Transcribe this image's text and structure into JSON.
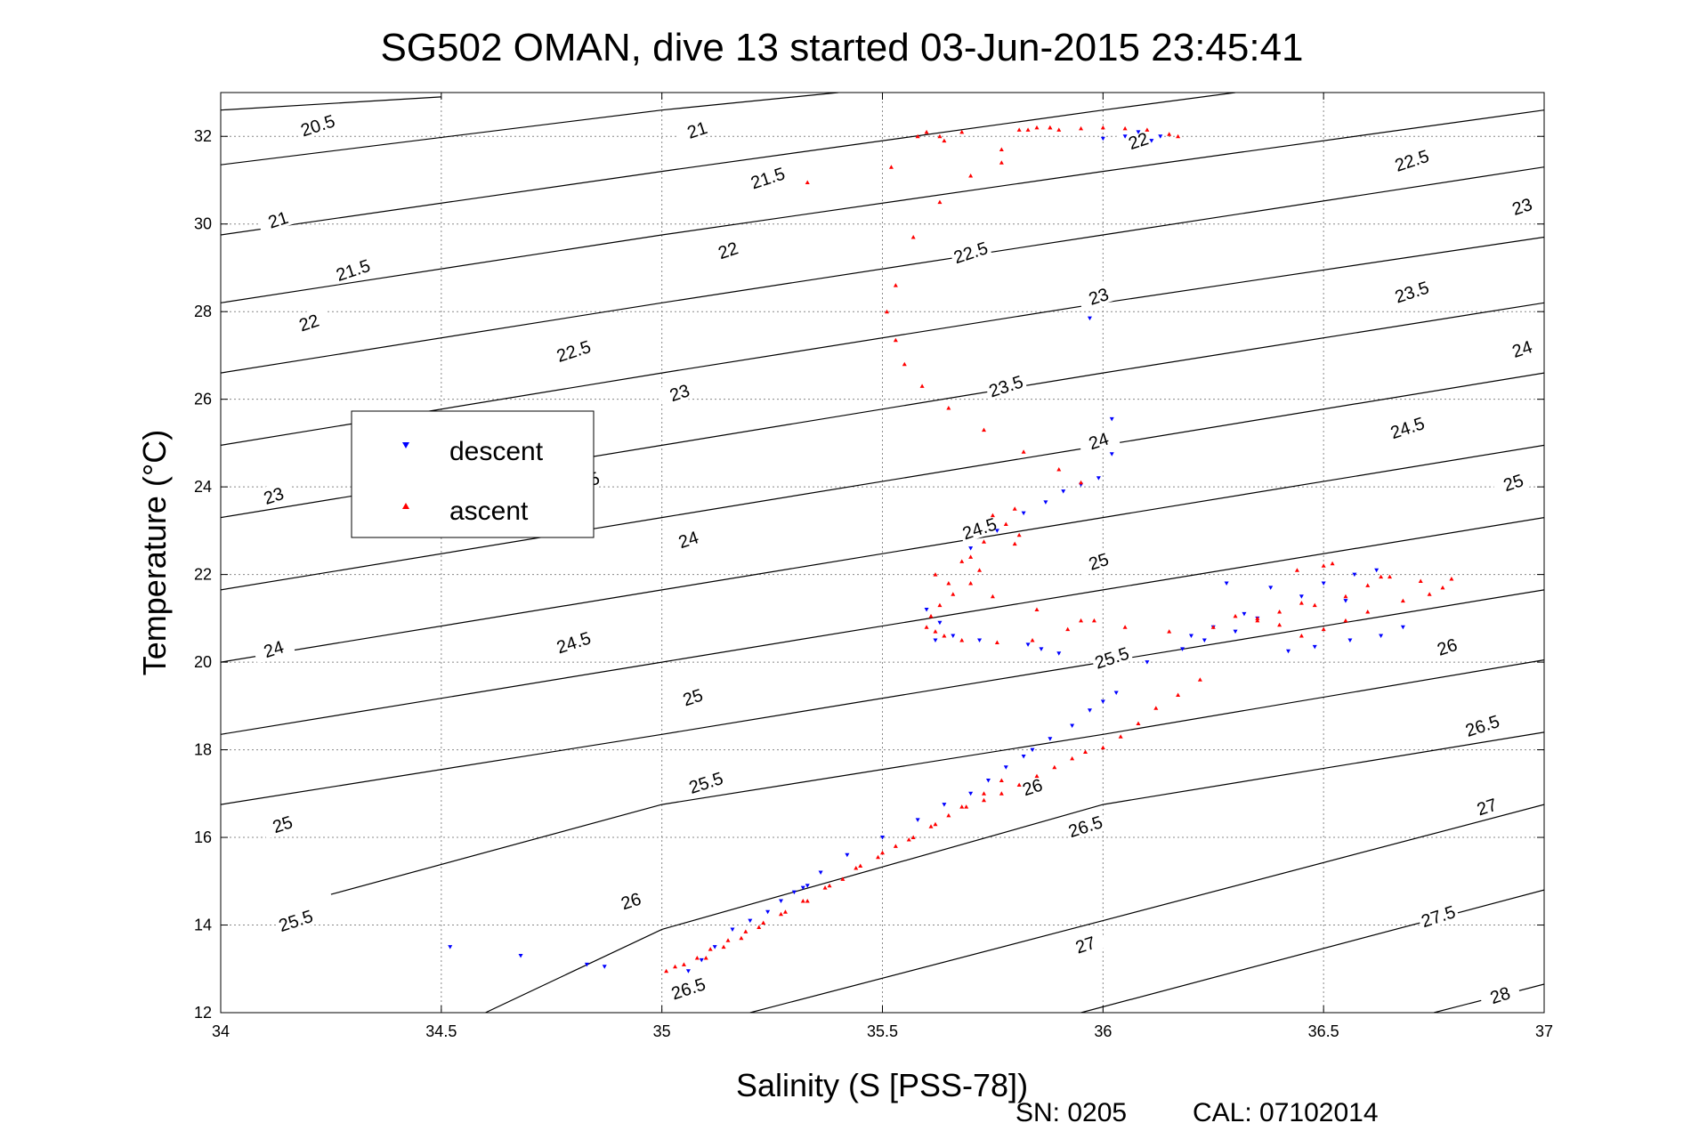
{
  "window": {
    "title": "SG502 OMAN, dive 13 started 03-Jun-2015 23:45:41"
  },
  "footer": {
    "serial": "SN: 0205",
    "calibration": "CAL: 07102014"
  },
  "colors": {
    "descent": "#0000ff",
    "ascent": "#ff0000",
    "contour": "#000000",
    "grid": "#888888"
  },
  "chart_data": {
    "type": "scatter",
    "title": "SG502 OMAN, dive 13 started 03-Jun-2015 23:45:41",
    "xlabel": "Salinity (S [PSS-78])",
    "ylabel": "Temperature (°C)",
    "xlim": [
      34,
      37
    ],
    "ylim": [
      12,
      33
    ],
    "xticks": [
      34,
      34.5,
      35,
      35.5,
      36,
      36.5,
      37
    ],
    "xtick_labels": [
      "34",
      "34.5",
      "35",
      "35.5",
      "36",
      "36.5",
      "37"
    ],
    "yticks": [
      12,
      14,
      16,
      18,
      20,
      22,
      24,
      26,
      28,
      30,
      32
    ],
    "ytick_labels": [
      "12",
      "14",
      "16",
      "18",
      "20",
      "22",
      "24",
      "26",
      "28",
      "30",
      "32"
    ],
    "grid": true,
    "legend": {
      "placement": "upper-left",
      "entries": [
        "descent",
        "ascent"
      ]
    },
    "contours": [
      {
        "level": 20.5,
        "label": "20.5",
        "points": [
          [
            34,
            32.6
          ],
          [
            34.5,
            32.9
          ]
        ],
        "label_at": [
          [
            34.22,
            32.25
          ]
        ]
      },
      {
        "level": 21,
        "label": "21",
        "points": [
          [
            34,
            31.35
          ],
          [
            35,
            32.6
          ],
          [
            35.4,
            33
          ]
        ],
        "label_at": [
          [
            34.13,
            30.1
          ],
          [
            35.08,
            32.15
          ]
        ]
      },
      {
        "level": 21.5,
        "label": "21.5",
        "points": [
          [
            34,
            29.75
          ],
          [
            35,
            31.2
          ],
          [
            36,
            32.6
          ],
          [
            36.3,
            33
          ]
        ],
        "label_at": [
          [
            34.3,
            28.95
          ],
          [
            35.24,
            31.05
          ]
        ]
      },
      {
        "level": 22,
        "label": "22",
        "points": [
          [
            34,
            28.2
          ],
          [
            35,
            29.75
          ],
          [
            36,
            31.2
          ],
          [
            37,
            32.6
          ]
        ],
        "label_at": [
          [
            34.2,
            27.75
          ],
          [
            35.15,
            29.4
          ],
          [
            36.08,
            31.9
          ]
        ]
      },
      {
        "level": 22.5,
        "label": "22.5",
        "points": [
          [
            34,
            26.6
          ],
          [
            35,
            28.2
          ],
          [
            36,
            29.75
          ],
          [
            37,
            31.3
          ]
        ],
        "label_at": [
          [
            34.8,
            27.1
          ],
          [
            35.7,
            29.35
          ],
          [
            36.7,
            31.45
          ]
        ]
      },
      {
        "level": 23,
        "label": "23",
        "points": [
          [
            34,
            24.95
          ],
          [
            35,
            26.6
          ],
          [
            36,
            28.2
          ],
          [
            37,
            29.7
          ]
        ],
        "label_at": [
          [
            34.12,
            23.8
          ],
          [
            35.04,
            26.15
          ],
          [
            35.99,
            28.35
          ],
          [
            36.95,
            30.4
          ]
        ]
      },
      {
        "level": 23.5,
        "label": "23.5",
        "points": [
          [
            34,
            23.3
          ],
          [
            35,
            24.95
          ],
          [
            36,
            26.6
          ],
          [
            37,
            28.2
          ]
        ],
        "label_at": [
          [
            34.82,
            24.1
          ],
          [
            35.78,
            26.3
          ],
          [
            36.7,
            28.45
          ]
        ]
      },
      {
        "level": 24,
        "label": "24",
        "points": [
          [
            34,
            21.65
          ],
          [
            35,
            23.3
          ],
          [
            36,
            24.95
          ],
          [
            37,
            26.6
          ]
        ],
        "label_at": [
          [
            34.12,
            20.3
          ],
          [
            35.06,
            22.8
          ],
          [
            35.99,
            25.05
          ],
          [
            36.95,
            27.15
          ]
        ]
      },
      {
        "level": 24.5,
        "label": "24.5",
        "points": [
          [
            34,
            20.0
          ],
          [
            35,
            21.65
          ],
          [
            36,
            23.3
          ],
          [
            37,
            24.95
          ]
        ],
        "label_at": [
          [
            34.8,
            20.45
          ],
          [
            35.72,
            23.05
          ],
          [
            36.69,
            25.35
          ]
        ]
      },
      {
        "level": 25,
        "label": "25",
        "points": [
          [
            34,
            18.35
          ],
          [
            35,
            20.0
          ],
          [
            36,
            21.65
          ],
          [
            37,
            23.3
          ]
        ],
        "label_at": [
          [
            34.14,
            16.3
          ],
          [
            35.07,
            19.2
          ],
          [
            35.99,
            22.3
          ],
          [
            36.93,
            24.1
          ]
        ]
      },
      {
        "level": 25.5,
        "label": "25.5",
        "points": [
          [
            34,
            16.75
          ],
          [
            35,
            18.35
          ],
          [
            36,
            20.0
          ],
          [
            37,
            21.65
          ]
        ],
        "label_at": [
          [
            34.17,
            14.1
          ],
          [
            35.1,
            17.25
          ],
          [
            36.02,
            20.1
          ]
        ]
      },
      {
        "level": 26,
        "label": "26",
        "points": [
          [
            34.25,
            14.7
          ],
          [
            35,
            16.75
          ],
          [
            36,
            18.35
          ],
          [
            37,
            20.05
          ]
        ],
        "label_at": [
          [
            34.93,
            14.55
          ],
          [
            35.84,
            17.15
          ],
          [
            36.78,
            20.35
          ]
        ]
      },
      {
        "level": 26.5,
        "label": "26.5",
        "points": [
          [
            34.6,
            12.0
          ],
          [
            35,
            13.9
          ],
          [
            36,
            16.75
          ],
          [
            37,
            18.4
          ]
        ],
        "label_at": [
          [
            35.06,
            12.55
          ],
          [
            35.96,
            16.25
          ],
          [
            36.86,
            18.55
          ]
        ]
      },
      {
        "level": 27,
        "label": "27",
        "points": [
          [
            35.2,
            12.0
          ],
          [
            36,
            14.1
          ],
          [
            37,
            16.75
          ]
        ],
        "label_at": [
          [
            35.96,
            13.55
          ],
          [
            36.87,
            16.7
          ]
        ]
      },
      {
        "level": 27.5,
        "label": "27.5",
        "points": [
          [
            35.95,
            12.0
          ],
          [
            37,
            14.8
          ]
        ],
        "label_at": [
          [
            36.76,
            14.2
          ]
        ]
      },
      {
        "level": 28,
        "label": "28",
        "points": [
          [
            36.75,
            12.0
          ],
          [
            37,
            12.65
          ]
        ],
        "label_at": [
          [
            36.9,
            12.4
          ]
        ]
      }
    ],
    "series": [
      {
        "name": "descent",
        "marker": "triangle-down",
        "x": [
          34.52,
          34.68,
          34.83,
          34.87,
          35.06,
          35.09,
          35.12,
          35.16,
          35.2,
          35.24,
          35.27,
          35.3,
          35.32,
          35.33,
          35.36,
          35.42,
          35.5,
          35.58,
          35.64,
          35.7,
          35.74,
          35.78,
          35.82,
          35.84,
          35.88,
          35.93,
          35.97,
          36.0,
          36.03,
          35.7,
          35.76,
          35.82,
          35.87,
          35.91,
          35.95,
          35.99,
          36.02,
          35.97,
          36.02,
          35.6,
          35.66,
          35.62,
          35.72,
          35.83,
          35.86,
          35.9,
          36.1,
          36.18,
          36.23,
          36.3,
          36.35,
          36.42,
          36.48,
          36.56,
          36.63,
          36.68,
          36.45,
          36.5,
          36.57,
          36.62,
          36.55,
          36.32,
          36.28,
          36.25,
          36.38,
          36.2,
          36.0,
          36.05,
          35.63,
          36.11,
          36.13,
          36.08
        ],
        "y": [
          13.5,
          13.3,
          13.1,
          13.05,
          12.95,
          13.2,
          13.5,
          13.9,
          14.1,
          14.3,
          14.55,
          14.75,
          14.85,
          14.9,
          15.2,
          15.6,
          16.0,
          16.4,
          16.75,
          17.0,
          17.3,
          17.6,
          17.85,
          18.0,
          18.25,
          18.55,
          18.9,
          19.1,
          19.3,
          22.6,
          23.0,
          23.4,
          23.65,
          23.9,
          24.05,
          24.2,
          24.75,
          27.85,
          25.55,
          21.2,
          20.6,
          20.5,
          20.5,
          20.4,
          20.3,
          20.2,
          20.0,
          20.3,
          20.5,
          20.7,
          21.0,
          20.25,
          20.35,
          20.5,
          20.6,
          20.8,
          21.5,
          21.8,
          22.0,
          22.1,
          21.4,
          21.1,
          21.8,
          20.8,
          21.7,
          20.6,
          31.95,
          32.0,
          20.9,
          31.9,
          32.0,
          32.1
        ]
      },
      {
        "name": "ascent",
        "marker": "triangle-up",
        "x": [
          35.01,
          35.03,
          35.05,
          35.08,
          35.11,
          35.15,
          35.19,
          35.23,
          35.28,
          35.33,
          35.37,
          35.41,
          35.45,
          35.49,
          35.53,
          35.57,
          35.61,
          35.65,
          35.69,
          35.73,
          35.77,
          35.81,
          35.85,
          35.89,
          35.93,
          35.96,
          36.0,
          36.04,
          36.08,
          36.12,
          36.17,
          36.22,
          35.1,
          35.14,
          35.18,
          35.22,
          35.27,
          35.32,
          35.38,
          35.44,
          35.5,
          35.56,
          35.62,
          35.68,
          35.73,
          35.77,
          35.8,
          35.78,
          35.73,
          35.75,
          35.7,
          35.72,
          35.7,
          35.66,
          35.63,
          35.61,
          35.6,
          35.62,
          35.64,
          35.68,
          35.76,
          35.84,
          35.92,
          35.98,
          35.95,
          35.9,
          35.82,
          35.73,
          35.65,
          35.59,
          35.55,
          35.53,
          35.51,
          35.53,
          35.57,
          35.63,
          35.7,
          35.77,
          35.81,
          35.85,
          35.88,
          35.9,
          35.81,
          35.8,
          35.68,
          35.62,
          35.65,
          35.75,
          35.85,
          35.95,
          36.05,
          36.15,
          36.25,
          36.35,
          36.4,
          36.45,
          36.3,
          36.35,
          36.4,
          36.48,
          36.55,
          36.6,
          36.65,
          36.45,
          36.5,
          36.55,
          36.6,
          36.68,
          36.74,
          36.77,
          36.79,
          36.72,
          36.63,
          36.5,
          36.44,
          36.52,
          35.58,
          35.6,
          35.64,
          35.68,
          35.83,
          35.88,
          35.95,
          36.0,
          36.05,
          36.1,
          36.15,
          36.17,
          35.33,
          35.52,
          35.63,
          35.77
        ],
        "y": [
          12.95,
          13.05,
          13.1,
          13.25,
          13.45,
          13.65,
          13.85,
          14.05,
          14.3,
          14.55,
          14.85,
          15.05,
          15.35,
          15.55,
          15.8,
          16.0,
          16.25,
          16.5,
          16.7,
          16.85,
          17.0,
          17.2,
          17.4,
          17.6,
          17.8,
          17.95,
          18.05,
          18.3,
          18.6,
          18.95,
          19.25,
          19.6,
          13.25,
          13.5,
          13.7,
          13.95,
          14.25,
          14.55,
          14.9,
          15.3,
          15.65,
          15.95,
          16.3,
          16.7,
          17.0,
          17.3,
          23.5,
          23.15,
          22.75,
          23.35,
          22.4,
          22.1,
          21.8,
          21.55,
          21.3,
          21.05,
          20.8,
          20.7,
          20.6,
          20.5,
          20.45,
          20.5,
          20.75,
          20.95,
          24.1,
          24.4,
          24.8,
          25.3,
          25.8,
          26.3,
          26.8,
          27.35,
          28.0,
          28.6,
          29.7,
          30.5,
          31.1,
          31.7,
          32.15,
          32.2,
          32.2,
          32.15,
          22.9,
          22.7,
          22.3,
          22.0,
          21.8,
          21.5,
          21.2,
          20.95,
          20.8,
          20.7,
          20.8,
          21.0,
          21.15,
          21.35,
          21.05,
          20.95,
          20.85,
          21.3,
          21.5,
          21.75,
          21.95,
          20.6,
          20.75,
          20.95,
          21.15,
          21.4,
          21.55,
          21.7,
          21.9,
          21.85,
          21.95,
          22.2,
          22.1,
          22.25,
          32.0,
          32.1,
          31.9,
          32.1,
          32.15,
          32.2,
          32.18,
          32.2,
          32.18,
          32.15,
          32.05,
          32.0,
          30.95,
          31.3,
          32.0,
          31.4
        ]
      }
    ]
  }
}
